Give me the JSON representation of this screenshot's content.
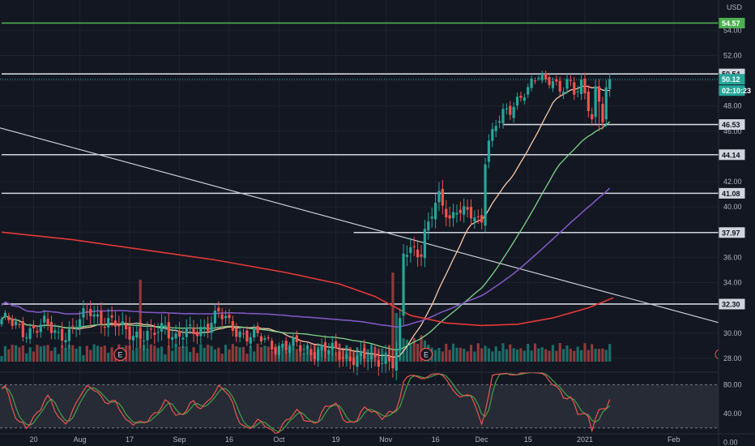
{
  "colors": {
    "background": "#131722",
    "grid": "#1e222d",
    "axis_text": "#b2b5be",
    "up": "#26a69a",
    "down": "#ef5350",
    "volume_up": "#1b6e68",
    "volume_down": "#8f3a3b",
    "level_line": "#d1d4dc",
    "target_line": "#4caf50",
    "ma_fast": "#f7c9a6",
    "ma_mid": "#7fd48a",
    "ma_slow": "#7e57c2",
    "ma_long": "#e53935",
    "trendline": "#c8cbd3",
    "stoch_k": "#ef5350",
    "stoch_d": "#43a047",
    "stoch_band": "#2a2e39"
  },
  "header": {
    "currency": "USD"
  },
  "chart_data": {
    "type": "candlestick",
    "x_tick_labels": [
      "20",
      "Aug",
      "17",
      "Sep",
      "16",
      "Oct",
      "19",
      "Nov",
      "16",
      "Dec",
      "15",
      "2021",
      "Feb"
    ],
    "y_tick_labels": [
      "54.00",
      "52.00",
      "48.00",
      "46.00",
      "42.00",
      "40.00",
      "36.00",
      "34.00",
      "30.00",
      "28.00"
    ],
    "y_range": [
      26.9,
      56.4
    ],
    "price_labels": [
      {
        "text": "54.57",
        "value": 54.57,
        "style": "target"
      },
      {
        "text": "50.54",
        "value": 50.54,
        "style": "level"
      },
      {
        "text": "50.12",
        "value": 50.12,
        "style": "last"
      },
      {
        "text": "02:10:23",
        "value": 49.0,
        "style": "countdown"
      },
      {
        "text": "46.53",
        "value": 46.53,
        "style": "level"
      },
      {
        "text": "44.14",
        "value": 44.14,
        "style": "level"
      },
      {
        "text": "41.08",
        "value": 41.08,
        "style": "level"
      },
      {
        "text": "37.97",
        "value": 37.97,
        "style": "level"
      },
      {
        "text": "32.30",
        "value": 32.3,
        "style": "level"
      }
    ],
    "horizontal_levels": [
      {
        "value": 54.57,
        "style": "target",
        "from_idx": 0
      },
      {
        "value": 50.54,
        "style": "level",
        "from_idx": 0
      },
      {
        "value": 46.53,
        "style": "level",
        "from_idx": 141
      },
      {
        "value": 44.14,
        "style": "level",
        "from_idx": 0
      },
      {
        "value": 41.08,
        "style": "level",
        "from_idx": 0
      },
      {
        "value": 37.97,
        "style": "level",
        "from_idx": 99
      },
      {
        "value": 32.3,
        "style": "level",
        "from_idx": 0
      }
    ],
    "trendline": {
      "from": [
        -1,
        46.3
      ],
      "to": [
        206,
        30.5
      ]
    },
    "earnings_markers": [
      {
        "label": "E",
        "index": 32
      },
      {
        "label": "E",
        "index": 118
      }
    ],
    "stochastic": {
      "y_tick_labels": [
        "80.00",
        "40.00",
        "0.00"
      ],
      "y_range": [
        -5,
        95
      ],
      "upper_band": 80,
      "lower_band": 20
    }
  }
}
